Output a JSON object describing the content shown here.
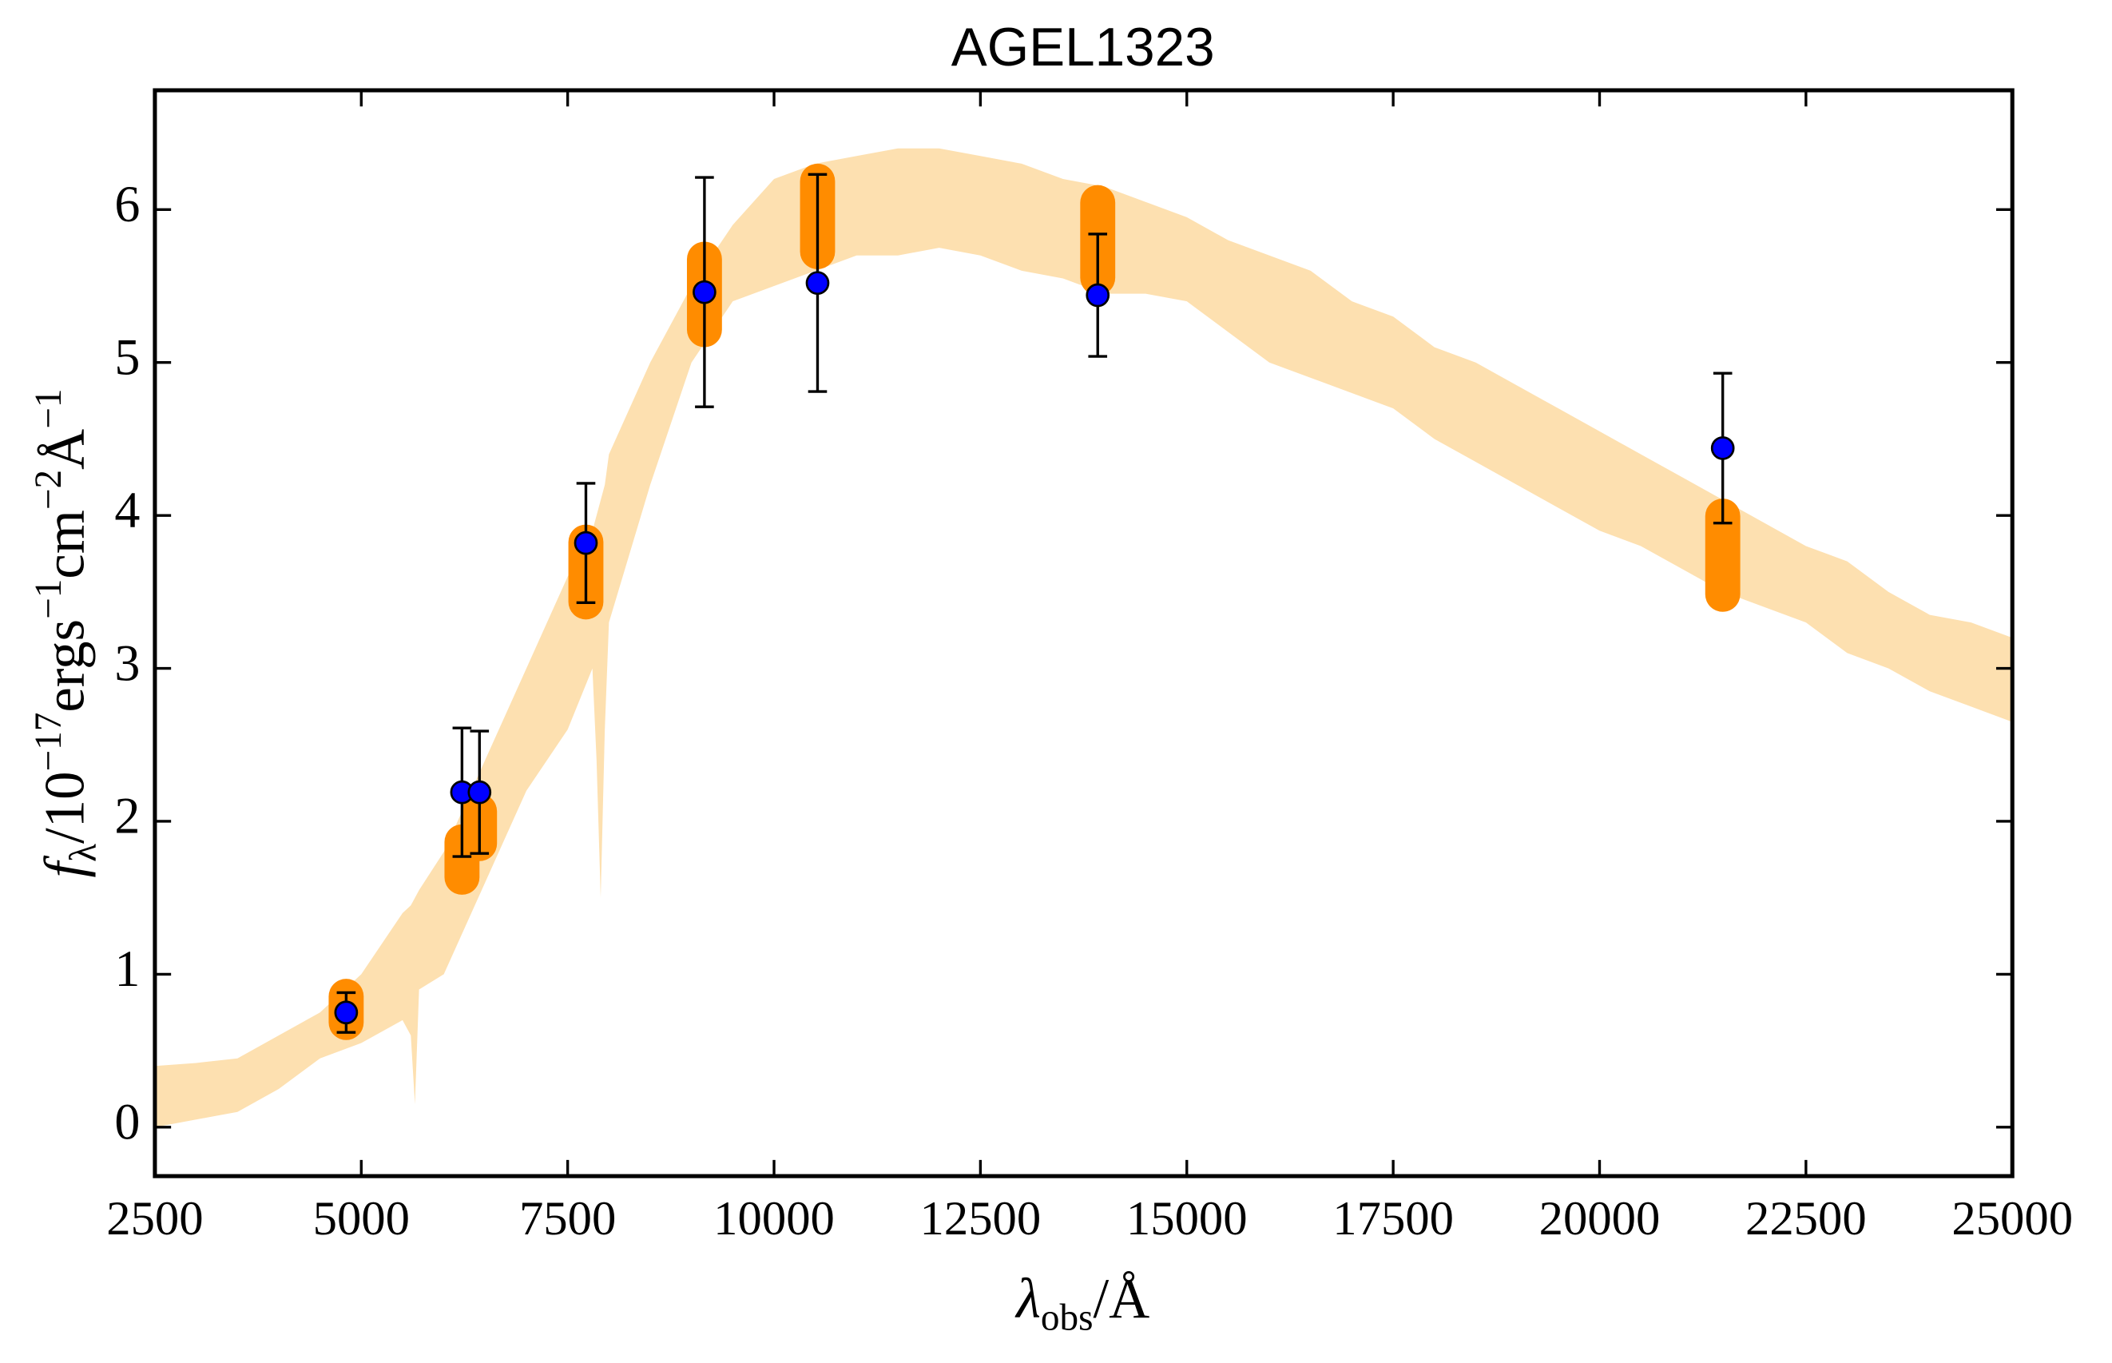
{
  "chart_data": {
    "type": "scatter",
    "title": "AGEL1323",
    "xlabel": [
      "λ",
      "obs",
      "/Å"
    ],
    "ylabel": [
      "f",
      "λ",
      "/10",
      "−17",
      "ergs",
      "−1",
      "cm",
      "−2",
      "Å",
      "−1"
    ],
    "xlim": [
      2500,
      25000
    ],
    "ylim": [
      -0.32,
      6.78
    ],
    "xticks": [
      2500,
      5000,
      7500,
      10000,
      12500,
      15000,
      17500,
      20000,
      22500,
      25000
    ],
    "yticks": [
      0,
      1,
      2,
      3,
      4,
      5,
      6
    ],
    "spectrum": {
      "color": "#fde0b0",
      "wavelength": [
        2500,
        3000,
        3500,
        4000,
        4500,
        5000,
        5500,
        5600,
        5650,
        5700,
        6000,
        6500,
        7000,
        7500,
        7800,
        7850,
        7900,
        7950,
        8000,
        8500,
        9000,
        9500,
        10000,
        10500,
        11000,
        11500,
        12000,
        12500,
        13000,
        13500,
        14000,
        14500,
        15000,
        15500,
        16000,
        16500,
        17000,
        17500,
        18000,
        18500,
        19000,
        19500,
        20000,
        20500,
        21000,
        21500,
        22000,
        22500,
        23000,
        23500,
        24000,
        24500,
        25000
      ],
      "low": [
        0.0,
        0.05,
        0.1,
        0.25,
        0.45,
        0.55,
        0.7,
        0.6,
        0.15,
        0.9,
        1.0,
        1.6,
        2.2,
        2.6,
        3.0,
        2.4,
        1.5,
        2.6,
        3.3,
        4.2,
        5.0,
        5.4,
        5.5,
        5.6,
        5.7,
        5.7,
        5.75,
        5.7,
        5.6,
        5.55,
        5.45,
        5.45,
        5.4,
        5.2,
        5.0,
        4.9,
        4.8,
        4.7,
        4.5,
        4.35,
        4.2,
        4.05,
        3.9,
        3.8,
        3.65,
        3.5,
        3.4,
        3.3,
        3.1,
        3.0,
        2.85,
        2.75,
        2.65
      ],
      "high": [
        0.4,
        0.42,
        0.45,
        0.6,
        0.75,
        1.0,
        1.4,
        1.45,
        1.5,
        1.55,
        1.8,
        2.4,
        3.0,
        3.6,
        3.9,
        4.0,
        4.1,
        4.2,
        4.4,
        5.0,
        5.5,
        5.9,
        6.2,
        6.3,
        6.35,
        6.4,
        6.4,
        6.35,
        6.3,
        6.2,
        6.15,
        6.05,
        5.95,
        5.8,
        5.7,
        5.6,
        5.4,
        5.3,
        5.1,
        5.0,
        4.85,
        4.7,
        4.55,
        4.4,
        4.25,
        4.1,
        3.95,
        3.8,
        3.7,
        3.5,
        3.35,
        3.3,
        3.2
      ]
    },
    "model_photometry": {
      "color": "#ff8c00",
      "low": [
        0.57,
        1.52,
        1.74,
        3.32,
        5.1,
        5.61,
        5.44,
        3.37
      ],
      "high": [
        0.97,
        1.98,
        2.18,
        3.94,
        5.79,
        6.3,
        6.16,
        4.11
      ]
    },
    "points": {
      "color": "#0000ff",
      "x": [
        4817,
        6220,
        6432,
        7721,
        9157,
        10527,
        13921,
        21492
      ],
      "y": [
        0.75,
        2.19,
        2.19,
        3.82,
        5.46,
        5.52,
        5.44,
        4.44
      ],
      "yerr": [
        0.13,
        0.42,
        0.4,
        0.39,
        0.75,
        0.71,
        0.4,
        0.49
      ]
    }
  }
}
